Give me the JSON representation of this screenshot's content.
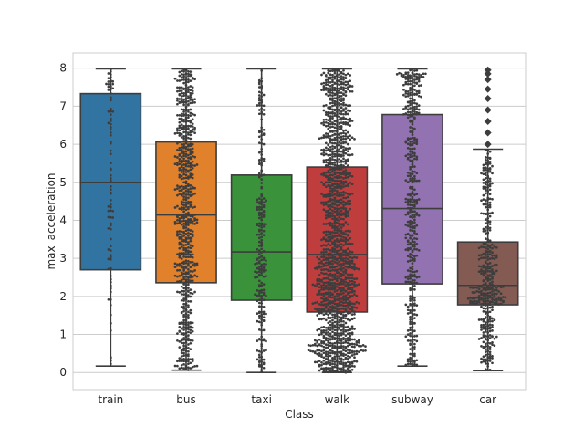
{
  "chart_data": {
    "type": "box",
    "overlay": "swarm",
    "title": "",
    "xlabel": "Class",
    "ylabel": "max_acceleration",
    "ylim": [
      -0.45,
      8.4
    ],
    "yticks": [
      0,
      1,
      2,
      3,
      4,
      5,
      6,
      7,
      8
    ],
    "grid": "horizontal",
    "categories": [
      "train",
      "bus",
      "taxi",
      "walk",
      "subway",
      "car"
    ],
    "boxes": [
      {
        "category": "train",
        "color": "#3274a1",
        "whisker_low": 0.17,
        "q1": 2.7,
        "median": 5.0,
        "q3": 7.33,
        "whisker_high": 7.98,
        "outliers": []
      },
      {
        "category": "bus",
        "color": "#e1812c",
        "whisker_low": 0.06,
        "q1": 2.36,
        "median": 4.14,
        "q3": 6.06,
        "whisker_high": 7.98,
        "outliers": []
      },
      {
        "category": "taxi",
        "color": "#3a923a",
        "whisker_low": 0.0,
        "q1": 1.9,
        "median": 3.17,
        "q3": 5.19,
        "whisker_high": 7.98,
        "outliers": []
      },
      {
        "category": "walk",
        "color": "#c03d3e",
        "whisker_low": 0.0,
        "q1": 1.59,
        "median": 3.1,
        "q3": 5.4,
        "whisker_high": 7.98,
        "outliers": []
      },
      {
        "category": "subway",
        "color": "#9372b2",
        "whisker_low": 0.17,
        "q1": 2.33,
        "median": 4.31,
        "q3": 6.78,
        "whisker_high": 7.98,
        "outliers": []
      },
      {
        "category": "car",
        "color": "#845b53",
        "whisker_low": 0.05,
        "q1": 1.78,
        "median": 2.29,
        "q3": 3.43,
        "whisker_high": 5.87,
        "outliers": [
          6.0,
          6.3,
          6.6,
          6.9,
          7.2,
          7.45,
          7.7,
          7.85,
          7.95
        ]
      }
    ],
    "swarm_color": "#3d3d3d",
    "swarm_counts_estimate": [
      90,
      700,
      260,
      1500,
      450,
      420
    ]
  }
}
